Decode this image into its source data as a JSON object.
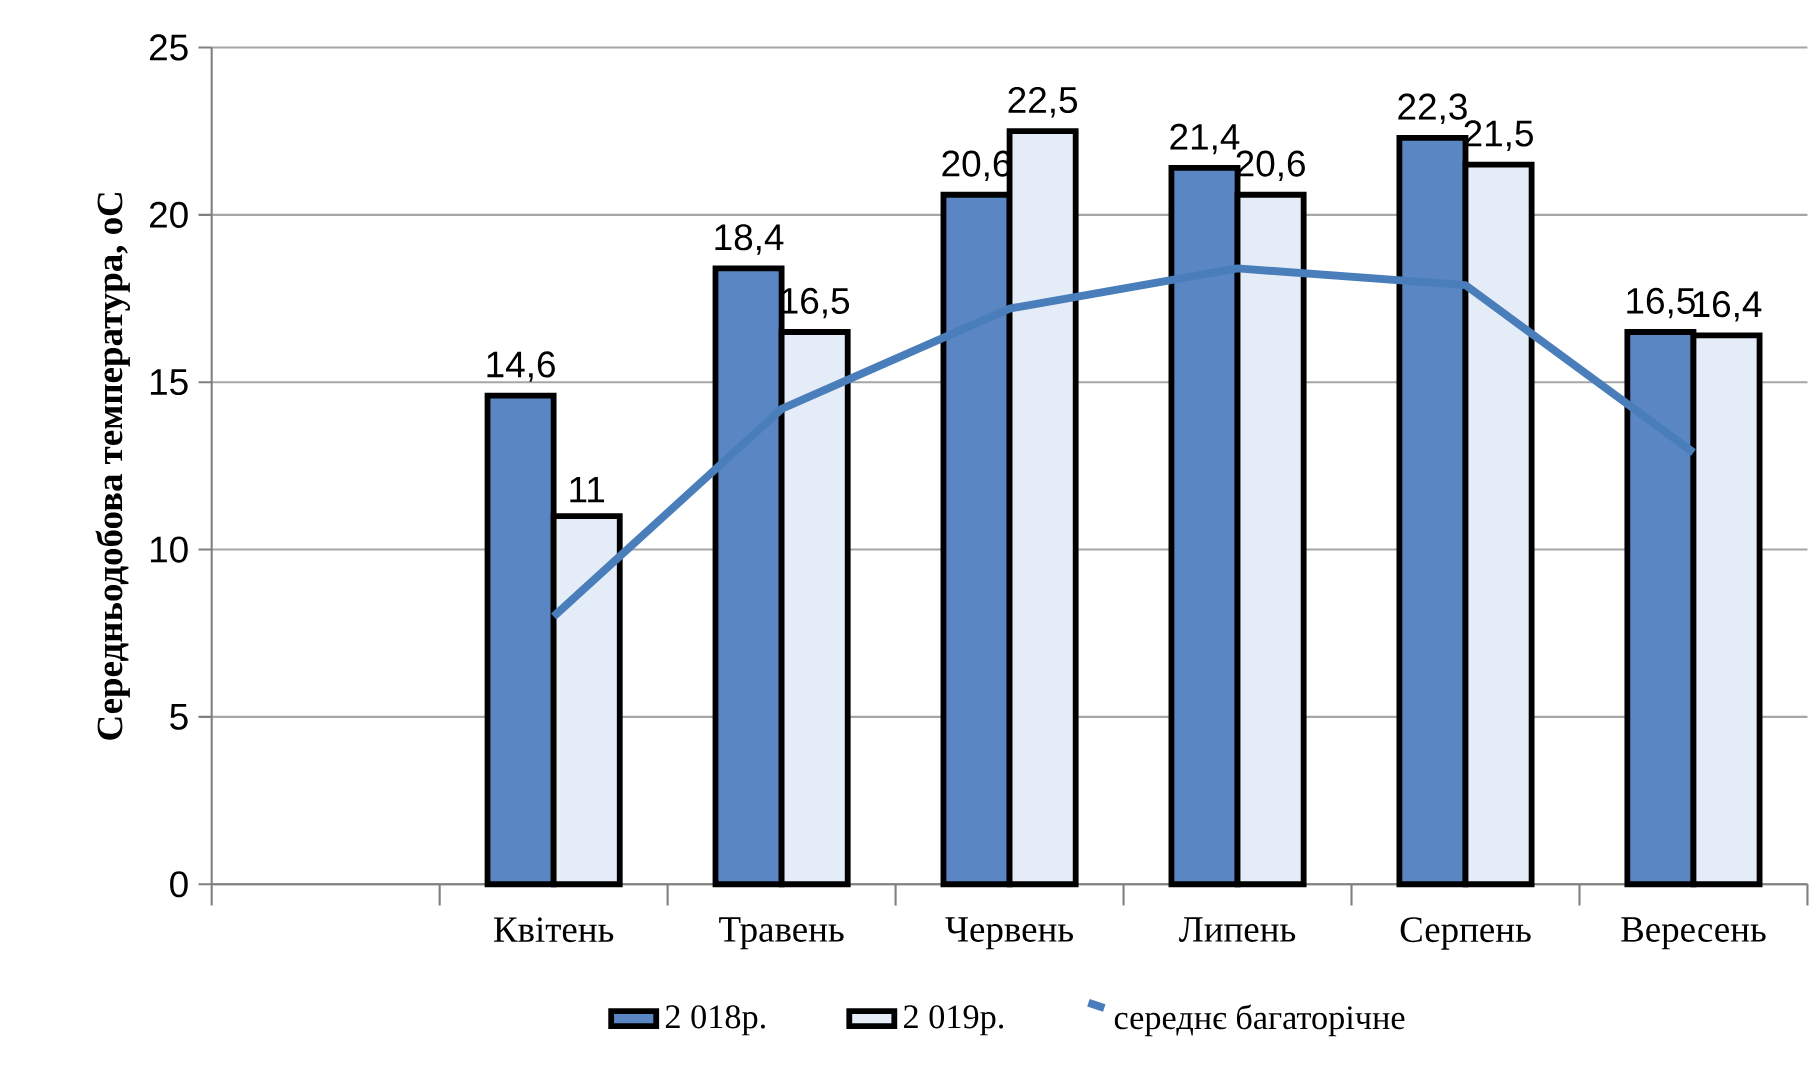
{
  "chart_data": {
    "type": "bar",
    "ylabel": "Середньодобова температура, оС",
    "categories": [
      null,
      "Квітень",
      "Травень",
      "Червень",
      "Липень",
      "Серпень",
      "Вересень"
    ],
    "series": [
      {
        "name": "2 018р.",
        "color": "#5a86c4",
        "values": [
          null,
          14.6,
          18.4,
          20.6,
          21.4,
          22.3,
          16.5
        ],
        "value_labels": [
          null,
          "14,6",
          "18,4",
          "20,6",
          "21,4",
          "22,3",
          "16,5"
        ]
      },
      {
        "name": "2 019р.",
        "color": "#e4ecf7",
        "values": [
          null,
          11,
          16.5,
          22.5,
          20.6,
          21.5,
          16.4
        ],
        "value_labels": [
          null,
          "11",
          "16,5",
          "22,5",
          "20,6",
          "21,5",
          "16,4"
        ]
      },
      {
        "name": "середнє багаторічне",
        "type": "line",
        "color": "#4a7ebb",
        "values": [
          null,
          8,
          14.2,
          17.2,
          18.4,
          17.9,
          12.9
        ]
      }
    ],
    "ylim": [
      0,
      25
    ],
    "yticks": [
      0,
      5,
      10,
      15,
      20,
      25
    ],
    "grid": "y",
    "legend": "bottom",
    "marker": "none"
  }
}
